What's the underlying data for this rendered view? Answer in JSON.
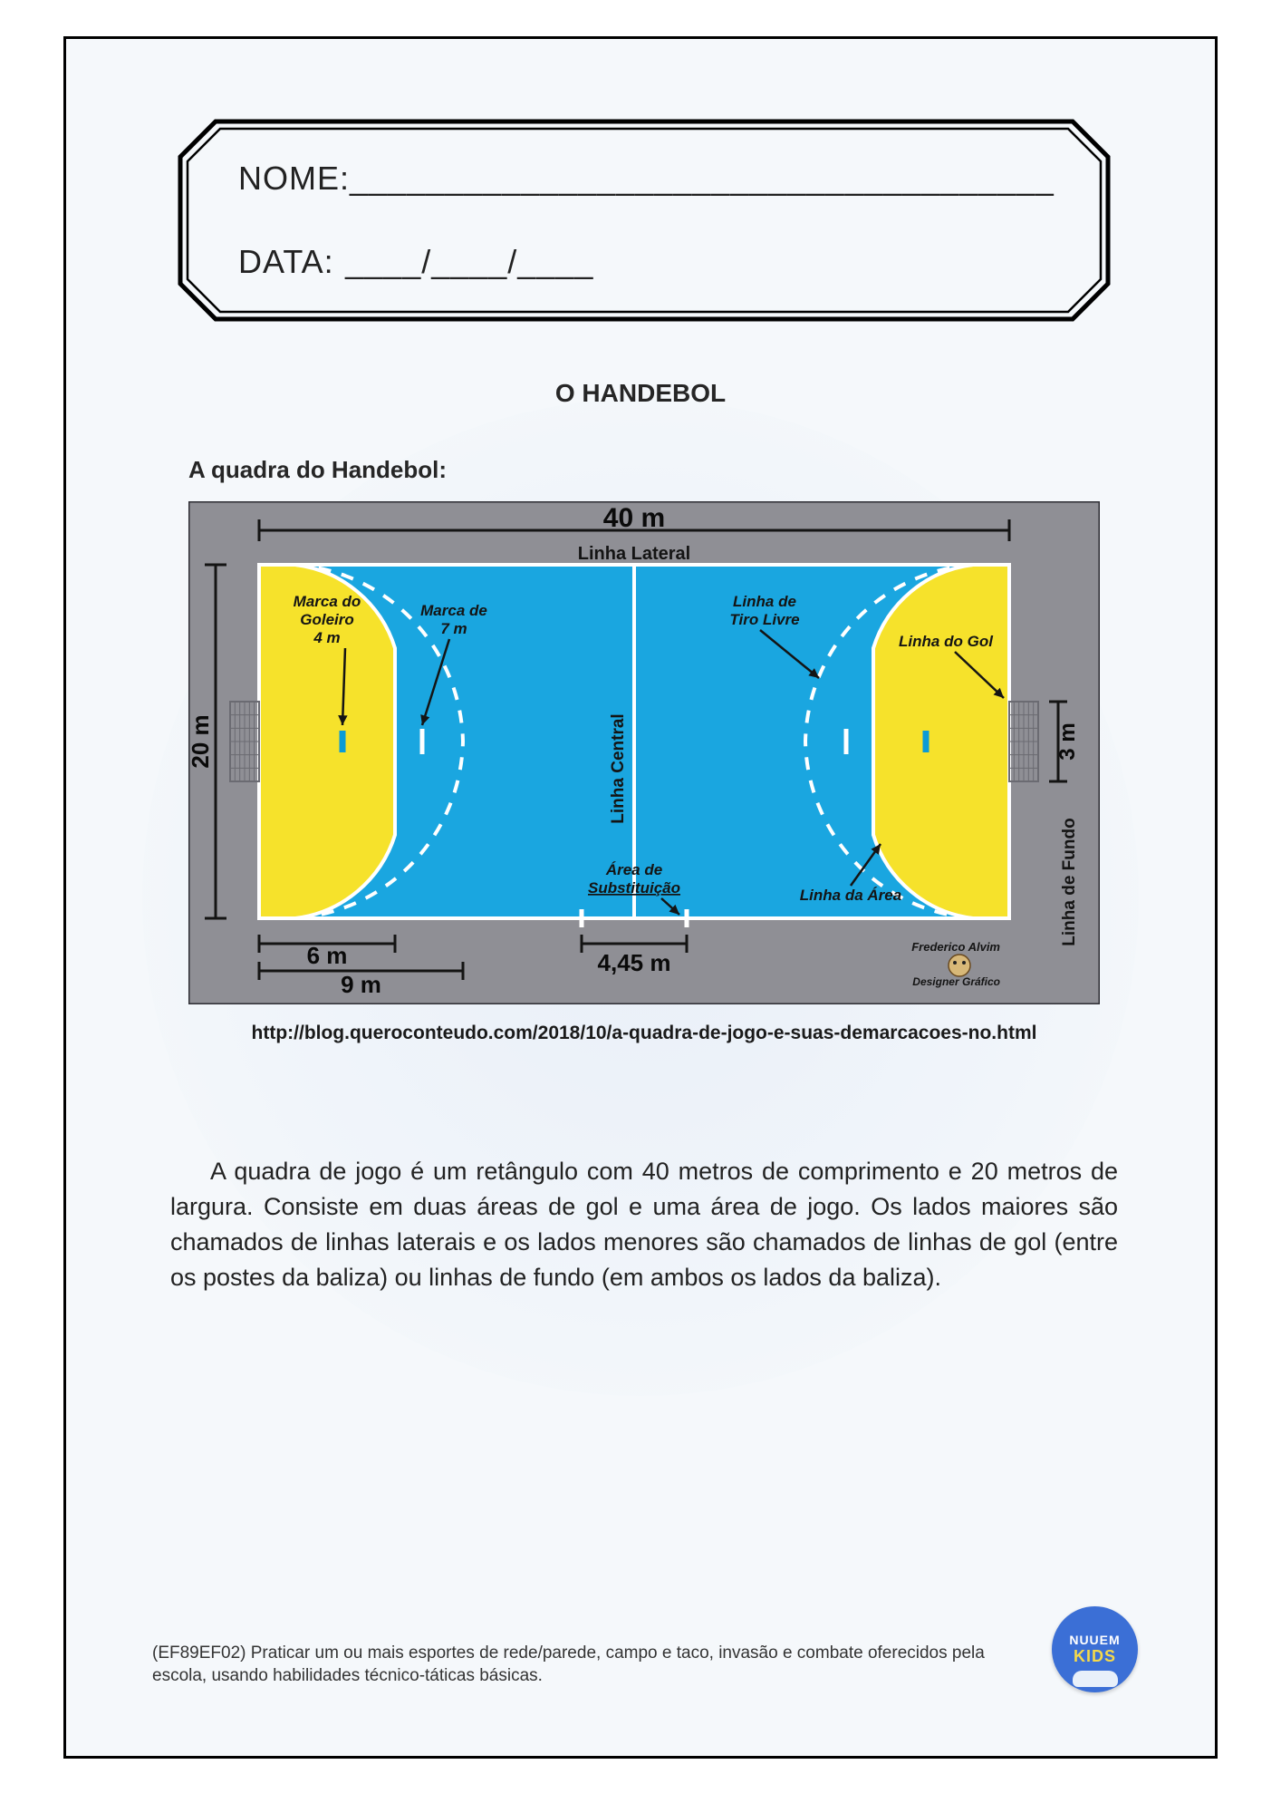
{
  "page": {
    "bg_color": "#f5f8fb",
    "border_color": "#000000"
  },
  "header": {
    "name_label": "NOME:",
    "date_label": "DATA:",
    "name_blank": "_____________________________________",
    "date_blank": "____/____/____"
  },
  "title": "O HANDEBOL",
  "subtitle": "A quadra do Handebol:",
  "source_url": "http://blog.queroconteudo.com/2018/10/a-quadra-de-jogo-e-suas-demarcacoes-no.html",
  "body": "A quadra de jogo é um retângulo com 40 metros de comprimento e 20 metros de largura. Consiste em duas áreas de gol e uma área de jogo. Os lados maiores são chamados de linhas laterais e os lados menores são chamados de linhas de gol (entre os postes da baliza) ou linhas de fundo (em ambos os lados da baliza).",
  "footer": {
    "code": "(EF89EF02) Praticar um ou mais esportes de rede/parede, campo e taco, invasão e combate oferecidos pela escola, usando habilidades técnico-táticas básicas.",
    "logo_top": "NUUEM",
    "logo_bot": "KIDS"
  },
  "court": {
    "outer_bg": "#8f8f95",
    "field_bg": "#1aa6e0",
    "area_bg": "#f6e22b",
    "line_color": "#ffffff",
    "dash_color": "#ffffff",
    "text_color": "#141414",
    "goal_net_color": "#6b6b72",
    "dims": {
      "width_m": "40 m",
      "height_m": "20 m",
      "six_m": "6 m",
      "nine_m": "9 m",
      "sub_w": "4,45 m",
      "goal_w": "3 m"
    },
    "labels": {
      "linha_lateral": "Linha Lateral",
      "marca_goleiro": "Marca do Goleiro 4 m",
      "marca_7m": "Marca de 7 m",
      "linha_tiro": "Linha de Tiro Livre",
      "linha_gol": "Linha do Gol",
      "linha_central": "Linha Central",
      "area_sub": "Área de Substituição",
      "linha_area": "Linha da Área",
      "linha_fundo": "Linha de Fundo",
      "credit_name": "Frederico Alvim",
      "credit_role": "Designer Gráfico"
    },
    "label_fontsize": 17,
    "dim_fontsize": 26
  }
}
